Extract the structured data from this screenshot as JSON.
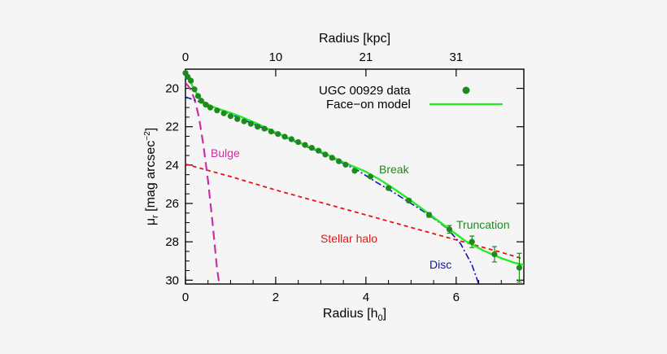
{
  "chart_data": {
    "type": "line",
    "xlabel": "Radius [h",
    "xlabel_sub": "0",
    "xlabel_close": "]",
    "x2label": "Radius [kpc]",
    "ylabel": "μ",
    "ylabel_sub": "r",
    "ylabel_rest": " [mag arcsec",
    "ylabel_sup": "−2",
    "ylabel_close": "]",
    "xlim": [
      0,
      7.5
    ],
    "ylim": [
      30.2,
      19.0
    ],
    "x_ticks": [
      0,
      2,
      4,
      6
    ],
    "y_ticks": [
      20,
      22,
      24,
      26,
      28,
      30
    ],
    "x2_ticks": [
      {
        "label": "0",
        "x": 0.0
      },
      {
        "label": "10",
        "x": 2.0
      },
      {
        "label": "21",
        "x": 4.0
      },
      {
        "label": "31",
        "x": 6.0
      }
    ],
    "legend": {
      "data_label": "UGC 00929 data",
      "model_label": "Face−on model",
      "placement": "top-right"
    },
    "annotations": {
      "bulge": "Bulge",
      "break": "Break",
      "truncation": "Truncation",
      "halo": "Stellar halo",
      "disc": "Disc"
    },
    "colors": {
      "data": "#1e8a1e",
      "model": "#22ee22",
      "bulge": "#cc2fa8",
      "halo": "#ee1111",
      "disc": "#1010bb",
      "annotation_green": "#1e8a1e",
      "frame": "#000000"
    },
    "series": [
      {
        "name": "UGC 00929 data",
        "style": "points",
        "x": [
          0.0,
          0.05,
          0.12,
          0.2,
          0.28,
          0.35,
          0.45,
          0.55,
          0.7,
          0.85,
          1.0,
          1.15,
          1.3,
          1.45,
          1.6,
          1.75,
          1.9,
          2.05,
          2.2,
          2.35,
          2.5,
          2.65,
          2.8,
          2.95,
          3.1,
          3.25,
          3.4,
          3.55,
          3.75,
          4.1,
          4.5,
          4.95,
          5.4,
          5.85,
          6.35,
          6.85,
          7.4
        ],
        "y": [
          19.2,
          19.4,
          19.6,
          20.05,
          20.4,
          20.65,
          20.85,
          21.0,
          21.15,
          21.3,
          21.45,
          21.6,
          21.72,
          21.85,
          22.0,
          22.1,
          22.25,
          22.38,
          22.52,
          22.65,
          22.8,
          22.95,
          23.1,
          23.25,
          23.45,
          23.62,
          23.8,
          23.98,
          24.3,
          24.6,
          25.2,
          25.85,
          26.6,
          27.35,
          28.0,
          28.65,
          29.35
        ],
        "yerr": [
          0.05,
          0.05,
          0.05,
          0.05,
          0.05,
          0.05,
          0.05,
          0.05,
          0.05,
          0.05,
          0.05,
          0.05,
          0.05,
          0.05,
          0.05,
          0.05,
          0.05,
          0.05,
          0.05,
          0.05,
          0.05,
          0.05,
          0.05,
          0.05,
          0.05,
          0.05,
          0.05,
          0.05,
          0.05,
          0.08,
          0.08,
          0.1,
          0.12,
          0.2,
          0.3,
          0.4,
          0.75
        ]
      },
      {
        "name": "Face−on model",
        "style": "solid",
        "x": [
          0.0,
          0.05,
          0.12,
          0.2,
          0.3,
          0.4,
          0.55,
          0.7,
          0.9,
          1.2,
          1.6,
          2.0,
          2.5,
          3.0,
          3.5,
          4.0,
          4.3,
          4.6,
          5.0,
          5.4,
          5.8,
          6.2,
          6.6,
          7.0,
          7.3,
          7.5
        ],
        "y": [
          19.1,
          19.4,
          19.7,
          20.1,
          20.45,
          20.7,
          20.9,
          21.05,
          21.2,
          21.45,
          21.85,
          22.3,
          22.8,
          23.3,
          23.85,
          24.35,
          24.75,
          25.2,
          25.85,
          26.55,
          27.25,
          27.95,
          28.45,
          28.85,
          29.1,
          29.2
        ]
      },
      {
        "name": "Bulge",
        "style": "long-dash",
        "x": [
          0.0,
          0.1,
          0.2,
          0.3,
          0.4,
          0.5,
          0.6,
          0.7,
          0.75
        ],
        "y": [
          19.7,
          20.0,
          20.55,
          21.5,
          23.0,
          24.8,
          27.0,
          29.4,
          30.2
        ]
      },
      {
        "name": "Stellar halo",
        "style": "short-dash",
        "x": [
          0.0,
          1.0,
          2.0,
          3.0,
          4.0,
          5.0,
          6.0,
          7.0,
          7.5
        ],
        "y": [
          23.95,
          24.6,
          25.3,
          25.95,
          26.6,
          27.25,
          27.9,
          28.55,
          28.9
        ]
      },
      {
        "name": "Disc",
        "style": "dash-dot",
        "x": [
          0.0,
          0.5,
          1.0,
          2.0,
          3.0,
          3.8,
          4.2,
          4.6,
          5.0,
          5.4,
          5.8,
          6.1,
          6.35,
          6.5
        ],
        "y": [
          20.45,
          20.85,
          21.35,
          22.35,
          23.35,
          24.25,
          24.85,
          25.4,
          26.0,
          26.6,
          27.3,
          28.1,
          29.2,
          30.2
        ]
      }
    ]
  }
}
